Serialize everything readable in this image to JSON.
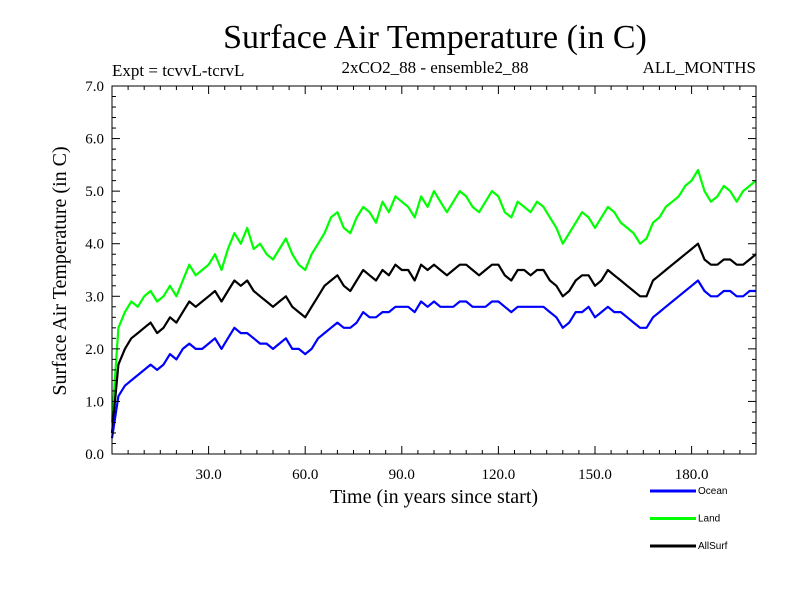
{
  "chart_data": {
    "type": "line",
    "title": "Surface Air Temperature (in C)",
    "subtitle_left": "Expt = tcvvL-tcrvL",
    "subtitle_center": "2xCO2_88 - ensemble2_88",
    "subtitle_right": "ALL_MONTHS",
    "xlabel": "Time (in years since start)",
    "ylabel": "Surface Air Temperature (in C)",
    "xlim": [
      0,
      200
    ],
    "ylim": [
      0,
      7
    ],
    "x_ticks": [
      30,
      60,
      90,
      120,
      150,
      180
    ],
    "x_tick_labels": [
      "30.0",
      "60.0",
      "90.0",
      "120.0",
      "150.0",
      "180.0"
    ],
    "y_ticks": [
      0,
      1,
      2,
      3,
      4,
      5,
      6,
      7
    ],
    "y_tick_labels": [
      "0.0",
      "1.0",
      "2.0",
      "3.0",
      "4.0",
      "5.0",
      "6.0",
      "7.0"
    ],
    "grid": false,
    "legend_position": "bottom-right",
    "x": [
      0,
      2,
      4,
      6,
      8,
      10,
      12,
      14,
      16,
      18,
      20,
      22,
      24,
      26,
      28,
      30,
      32,
      34,
      36,
      38,
      40,
      42,
      44,
      46,
      48,
      50,
      52,
      54,
      56,
      58,
      60,
      62,
      64,
      66,
      68,
      70,
      72,
      74,
      76,
      78,
      80,
      82,
      84,
      86,
      88,
      90,
      92,
      94,
      96,
      98,
      100,
      102,
      104,
      106,
      108,
      110,
      112,
      114,
      116,
      118,
      120,
      122,
      124,
      126,
      128,
      130,
      132,
      134,
      136,
      138,
      140,
      142,
      144,
      146,
      148,
      150,
      152,
      154,
      156,
      158,
      160,
      162,
      164,
      166,
      168,
      170,
      172,
      174,
      176,
      178,
      180,
      182,
      184,
      186,
      188,
      190,
      192,
      194,
      196,
      198,
      200
    ],
    "series": [
      {
        "name": "Land",
        "color": "#00ff00",
        "values": [
          0.6,
          2.4,
          2.7,
          2.9,
          2.8,
          3.0,
          3.1,
          2.9,
          3.0,
          3.2,
          3.0,
          3.3,
          3.6,
          3.4,
          3.5,
          3.6,
          3.8,
          3.5,
          3.9,
          4.2,
          4.0,
          4.3,
          3.9,
          4.0,
          3.8,
          3.7,
          3.9,
          4.1,
          3.8,
          3.6,
          3.5,
          3.8,
          4.0,
          4.2,
          4.5,
          4.6,
          4.3,
          4.2,
          4.5,
          4.7,
          4.6,
          4.4,
          4.8,
          4.6,
          4.9,
          4.8,
          4.7,
          4.5,
          4.9,
          4.7,
          5.0,
          4.8,
          4.6,
          4.8,
          5.0,
          4.9,
          4.7,
          4.6,
          4.8,
          5.0,
          4.9,
          4.6,
          4.5,
          4.8,
          4.7,
          4.6,
          4.8,
          4.7,
          4.5,
          4.3,
          4.0,
          4.2,
          4.4,
          4.6,
          4.5,
          4.3,
          4.5,
          4.7,
          4.6,
          4.4,
          4.3,
          4.2,
          4.0,
          4.1,
          4.4,
          4.5,
          4.7,
          4.8,
          4.9,
          5.1,
          5.2,
          5.4,
          5.0,
          4.8,
          4.9,
          5.1,
          5.0,
          4.8,
          5.0,
          5.1,
          5.2
        ]
      },
      {
        "name": "AllSurf",
        "color": "#000000",
        "values": [
          0.4,
          1.7,
          2.0,
          2.2,
          2.3,
          2.4,
          2.5,
          2.3,
          2.4,
          2.6,
          2.5,
          2.7,
          2.9,
          2.8,
          2.9,
          3.0,
          3.1,
          2.9,
          3.1,
          3.3,
          3.2,
          3.3,
          3.1,
          3.0,
          2.9,
          2.8,
          2.9,
          3.0,
          2.8,
          2.7,
          2.6,
          2.8,
          3.0,
          3.2,
          3.3,
          3.4,
          3.2,
          3.1,
          3.3,
          3.5,
          3.4,
          3.3,
          3.5,
          3.4,
          3.6,
          3.5,
          3.5,
          3.3,
          3.6,
          3.5,
          3.6,
          3.5,
          3.4,
          3.5,
          3.6,
          3.6,
          3.5,
          3.4,
          3.5,
          3.6,
          3.6,
          3.4,
          3.3,
          3.5,
          3.5,
          3.4,
          3.5,
          3.5,
          3.3,
          3.2,
          3.0,
          3.1,
          3.3,
          3.4,
          3.4,
          3.2,
          3.3,
          3.5,
          3.4,
          3.3,
          3.2,
          3.1,
          3.0,
          3.0,
          3.3,
          3.4,
          3.5,
          3.6,
          3.7,
          3.8,
          3.9,
          4.0,
          3.7,
          3.6,
          3.6,
          3.7,
          3.7,
          3.6,
          3.6,
          3.7,
          3.8
        ]
      },
      {
        "name": "Ocean",
        "color": "#0000ff",
        "values": [
          0.3,
          1.1,
          1.3,
          1.4,
          1.5,
          1.6,
          1.7,
          1.6,
          1.7,
          1.9,
          1.8,
          2.0,
          2.1,
          2.0,
          2.0,
          2.1,
          2.2,
          2.0,
          2.2,
          2.4,
          2.3,
          2.3,
          2.2,
          2.1,
          2.1,
          2.0,
          2.1,
          2.2,
          2.0,
          2.0,
          1.9,
          2.0,
          2.2,
          2.3,
          2.4,
          2.5,
          2.4,
          2.4,
          2.5,
          2.7,
          2.6,
          2.6,
          2.7,
          2.7,
          2.8,
          2.8,
          2.8,
          2.7,
          2.9,
          2.8,
          2.9,
          2.8,
          2.8,
          2.8,
          2.9,
          2.9,
          2.8,
          2.8,
          2.8,
          2.9,
          2.9,
          2.8,
          2.7,
          2.8,
          2.8,
          2.8,
          2.8,
          2.8,
          2.7,
          2.6,
          2.4,
          2.5,
          2.7,
          2.7,
          2.8,
          2.6,
          2.7,
          2.8,
          2.7,
          2.7,
          2.6,
          2.5,
          2.4,
          2.4,
          2.6,
          2.7,
          2.8,
          2.9,
          3.0,
          3.1,
          3.2,
          3.3,
          3.1,
          3.0,
          3.0,
          3.1,
          3.1,
          3.0,
          3.0,
          3.1,
          3.1
        ]
      }
    ],
    "legend": [
      {
        "label": "Ocean",
        "color": "#0000ff"
      },
      {
        "label": "Land",
        "color": "#00ff00"
      },
      {
        "label": "AllSurf",
        "color": "#000000"
      }
    ]
  }
}
